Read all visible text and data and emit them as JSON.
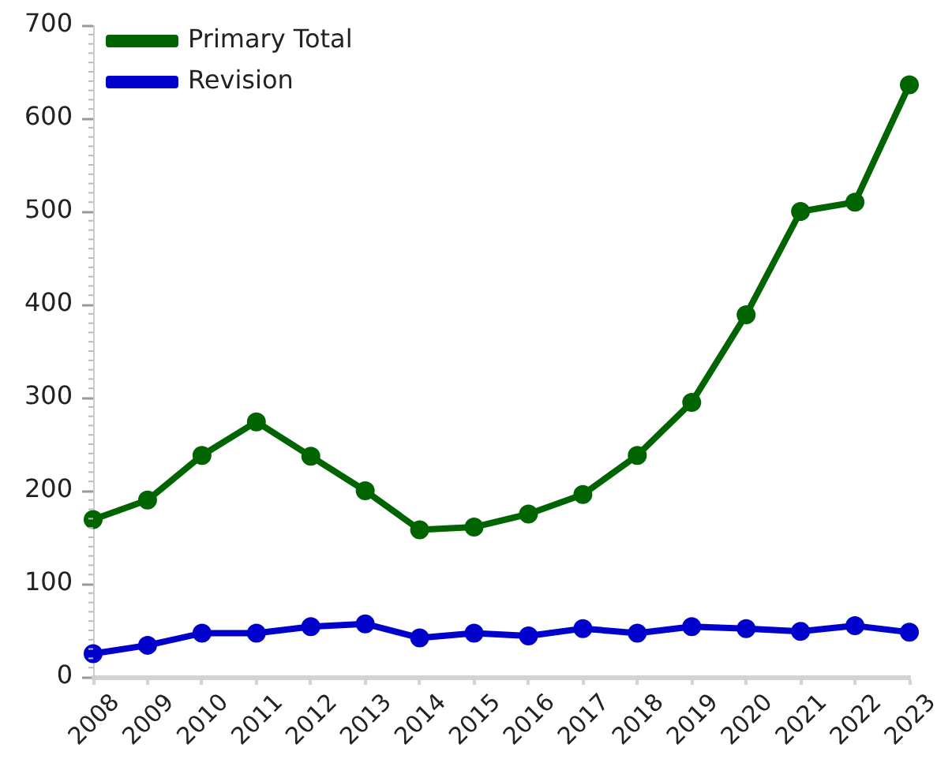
{
  "chart_data": {
    "type": "line",
    "categories": [
      "2008",
      "2009",
      "2010",
      "2011",
      "2012",
      "2013",
      "2014",
      "2015",
      "2016",
      "2017",
      "2018",
      "2019",
      "2020",
      "2021",
      "2022",
      "2023"
    ],
    "series": [
      {
        "name": "Primary Total",
        "color": "#006400",
        "values": [
          169,
          190,
          238,
          274,
          237,
          200,
          158,
          161,
          175,
          196,
          238,
          295,
          389,
          500,
          510,
          636
        ]
      },
      {
        "name": "Revision",
        "color": "#0000cd",
        "values": [
          25,
          34,
          47,
          47,
          54,
          57,
          42,
          47,
          44,
          52,
          47,
          54,
          52,
          49,
          55,
          48
        ]
      }
    ],
    "ylim": [
      0,
      700
    ],
    "yticks": [
      0,
      100,
      200,
      300,
      400,
      500,
      600,
      700
    ],
    "grid": false,
    "legend": "top left",
    "marker": "circle",
    "line_style": "solid"
  }
}
